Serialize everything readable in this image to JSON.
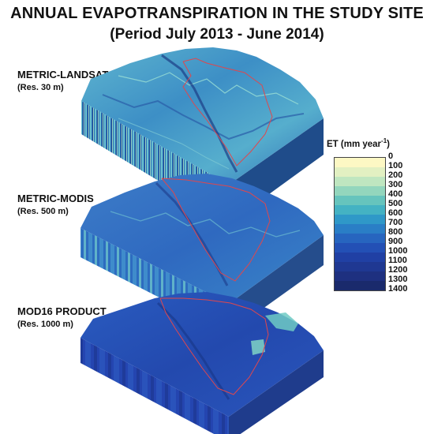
{
  "figure": {
    "title": "ANNUAL EVAPOTRANSPIRATION IN THE STUDY SITE",
    "subtitle": "(Period July 2013 - June 2014)"
  },
  "panels": [
    {
      "name": "METRIC-LANDSAT",
      "resolution": "(Res. 30 m)"
    },
    {
      "name": "METRIC-MODIS",
      "resolution": "(Res. 500 m)"
    },
    {
      "name": "MOD16 PRODUCT",
      "resolution": "(Res. 1000 m)"
    }
  ],
  "legend": {
    "title": "ET (mm year",
    "title_exp": "-1",
    "title_close": ")",
    "classes": [
      {
        "label": "0",
        "color": "#ffffff"
      },
      {
        "label": "100",
        "color": "#fdf8c4"
      },
      {
        "label": "200",
        "color": "#e2f0c2"
      },
      {
        "label": "300",
        "color": "#bfe6c0"
      },
      {
        "label": "400",
        "color": "#93d6bd"
      },
      {
        "label": "500",
        "color": "#66c4bd"
      },
      {
        "label": "600",
        "color": "#44b2c3"
      },
      {
        "label": "700",
        "color": "#2f98c8"
      },
      {
        "label": "800",
        "color": "#2a7ec6"
      },
      {
        "label": "900",
        "color": "#2765bf"
      },
      {
        "label": "1000",
        "color": "#2350b5"
      },
      {
        "label": "1100",
        "color": "#2040a4"
      },
      {
        "label": "1200",
        "color": "#1f3892"
      },
      {
        "label": "1300",
        "color": "#1e3080"
      },
      {
        "label": "1400",
        "color": "#1a2a6c"
      }
    ]
  }
}
